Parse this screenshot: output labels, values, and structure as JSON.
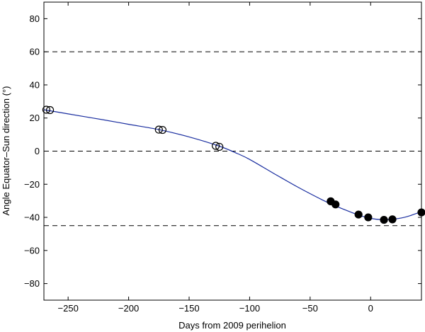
{
  "chart_data": {
    "type": "scatter",
    "xlabel": "Days from 2009 perihelion",
    "ylabel": "Angle Equator–Sun direction (°)",
    "xlim": [
      -270,
      42
    ],
    "ylim": [
      -90,
      90
    ],
    "xticks": [
      -250,
      -200,
      -150,
      -100,
      -50,
      0
    ],
    "yticks": [
      -80,
      -60,
      -40,
      -20,
      0,
      20,
      40,
      60,
      80
    ],
    "reference_lines_y": [
      60,
      0,
      -45
    ],
    "grid": false,
    "colors": {
      "curve": "#1a2ea0",
      "marker_filled": "#000000",
      "marker_open": "#000000",
      "reference": "#000000"
    },
    "series": [
      {
        "kind": "line",
        "x": [
          -270,
          -250,
          -220,
          -200,
          -175,
          -150,
          -125,
          -110,
          -100,
          -80,
          -60,
          -40,
          -30,
          -20,
          -10,
          0,
          10,
          20,
          30,
          42
        ],
        "y": [
          25,
          22.5,
          18.8,
          16.2,
          13,
          8.6,
          3,
          -1.5,
          -5,
          -13.5,
          -21.8,
          -29.4,
          -32.8,
          -35.8,
          -38.6,
          -40.6,
          -41.4,
          -41,
          -39.6,
          -36.5
        ]
      },
      {
        "kind": "scatter",
        "marker": "open-circle",
        "x": [
          -268,
          -265,
          -175,
          -172,
          -128,
          -125
        ],
        "y": [
          25,
          24.8,
          13,
          12.8,
          3.2,
          2.6
        ]
      },
      {
        "kind": "scatter",
        "marker": "filled-circle",
        "x": [
          -33,
          -29,
          -10,
          -2,
          11,
          18,
          42
        ],
        "y": [
          -30.3,
          -32.2,
          -38.3,
          -40,
          -41.5,
          -41.2,
          -37
        ]
      }
    ]
  }
}
